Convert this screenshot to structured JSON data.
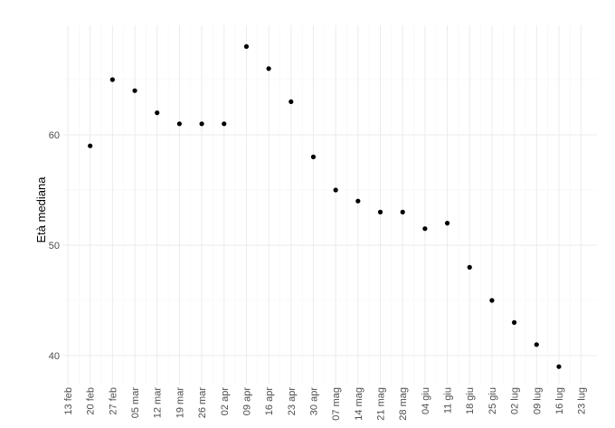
{
  "chart_data": {
    "type": "scatter",
    "title": "",
    "xlabel": "",
    "ylabel": "Età mediana",
    "x_ticks": [
      "13 feb",
      "20 feb",
      "27 feb",
      "05 mar",
      "12 mar",
      "19 mar",
      "26 mar",
      "02 apr",
      "09 apr",
      "16 apr",
      "23 apr",
      "30 apr",
      "07 mag",
      "14 mag",
      "21 mag",
      "28 mag",
      "04 giu",
      "11 giu",
      "18 giu",
      "25 giu",
      "02 lug",
      "09 lug",
      "16 lug",
      "23 lug"
    ],
    "y_ticks": [
      40,
      50,
      60
    ],
    "ylim": [
      37,
      69
    ],
    "grid": true,
    "legend": "none",
    "point_color": "#000000",
    "series": [
      {
        "x": [
          "20 feb",
          "27 feb",
          "05 mar",
          "12 mar",
          "19 mar",
          "26 mar",
          "02 apr",
          "09 apr",
          "16 apr",
          "23 apr",
          "30 apr",
          "07 mag",
          "14 mag",
          "21 mag",
          "28 mag",
          "04 giu",
          "11 giu",
          "18 giu",
          "25 giu",
          "02 lug",
          "09 lug",
          "16 lug"
        ],
        "y": [
          59,
          65,
          64,
          62,
          61,
          61,
          61,
          68,
          66,
          63,
          58,
          55,
          54,
          53,
          53,
          51.5,
          52,
          48,
          45,
          43,
          41,
          39
        ]
      }
    ]
  }
}
